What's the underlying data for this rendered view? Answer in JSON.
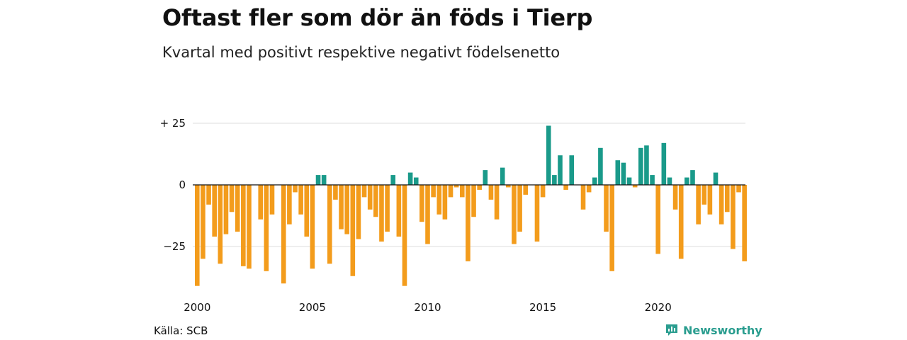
{
  "title": "Oftast fler som dör än föds i Tierp",
  "subtitle": "Kvartal med positivt respektive negativt födelsenetto",
  "source": "Källa: SCB",
  "brand": {
    "name": "Newsworthy",
    "icon": "newsworthy-logo-icon"
  },
  "colors": {
    "positive": "#1a9a8a",
    "negative": "#f39c1c",
    "grid": "#dddddd",
    "zero": "#111111"
  },
  "chart_data": {
    "type": "bar",
    "title": "Oftast fler som dör än föds i Tierp",
    "subtitle": "Kvartal med positivt respektive negativt födelsenetto",
    "xlabel": "",
    "ylabel": "",
    "ylim": [
      -43,
      27
    ],
    "yticks": [
      {
        "value": 25,
        "label": "+ 25"
      },
      {
        "value": 0,
        "label": "0"
      },
      {
        "value": -25,
        "label": "−25"
      }
    ],
    "xticks": [
      "2000",
      "2005",
      "2010",
      "2015",
      "2020"
    ],
    "grid": true,
    "start_year": 2000,
    "quarters_per_year": 4,
    "values": [
      -41,
      -30,
      -8,
      -21,
      -32,
      -20,
      -11,
      -19,
      -33,
      -34,
      0,
      -14,
      -35,
      -12,
      0,
      -40,
      -16,
      -3,
      -12,
      -21,
      -34,
      4,
      4,
      -32,
      -6,
      -18,
      -20,
      -37,
      -22,
      -5,
      -10,
      -13,
      -23,
      -19,
      4,
      -21,
      -41,
      5,
      3,
      -15,
      -24,
      -5,
      -12,
      -14,
      -5,
      -1,
      -5,
      -31,
      -13,
      -2,
      6,
      -6,
      -14,
      7,
      -1,
      -24,
      -19,
      -4,
      0,
      -23,
      -5,
      24,
      4,
      12,
      -2,
      12,
      0,
      -10,
      -3,
      3,
      15,
      -19,
      -35,
      10,
      9,
      3,
      -1,
      15,
      16,
      4,
      -28,
      17,
      3,
      -10,
      -30,
      3,
      6,
      -16,
      -8,
      -12,
      5,
      -16,
      -11,
      -26,
      -3,
      -31
    ]
  }
}
